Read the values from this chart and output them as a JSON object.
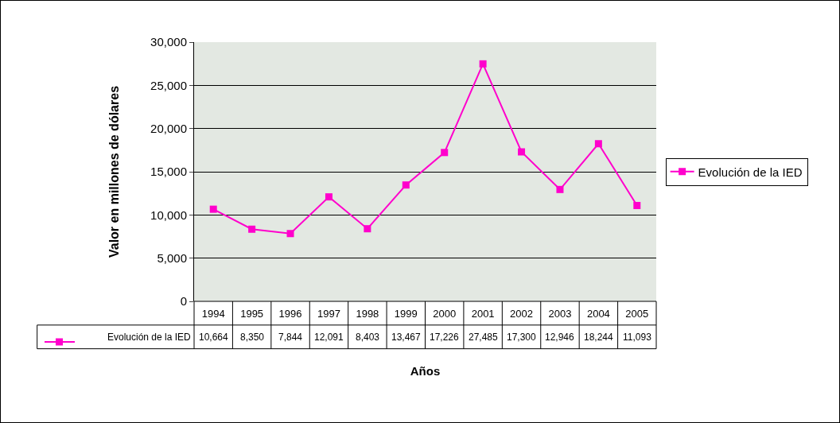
{
  "chart_data": {
    "type": "line",
    "xlabel": "Años",
    "ylabel": "Valor en millones de dólares",
    "categories": [
      "1994",
      "1995",
      "1996",
      "1997",
      "1998",
      "1999",
      "2000",
      "2001",
      "2002",
      "2003",
      "2004",
      "2005"
    ],
    "series": [
      {
        "name": "Evolución de la IED",
        "color": "#ff00cc",
        "values": [
          10664,
          8350,
          7844,
          12091,
          8403,
          13467,
          17226,
          27485,
          17300,
          12946,
          18244,
          11093
        ],
        "value_labels": [
          "10,664",
          "8,350",
          "7,844",
          "12,091",
          "8,403",
          "13,467",
          "17,226",
          "27,485",
          "17,300",
          "12,946",
          "18,244",
          "11,093"
        ]
      }
    ],
    "ylim": [
      0,
      30000
    ],
    "yticks": [
      {
        "value": 0,
        "label": "0"
      },
      {
        "value": 5000,
        "label": "5,000"
      },
      {
        "value": 10000,
        "label": "10,000"
      },
      {
        "value": 15000,
        "label": "15,000"
      },
      {
        "value": 20000,
        "label": "20,000"
      },
      {
        "value": 25000,
        "label": "25,000"
      },
      {
        "value": 30000,
        "label": "30,000"
      }
    ],
    "grid": "y",
    "legend": "right",
    "marker": "square",
    "line_style": "solid"
  }
}
